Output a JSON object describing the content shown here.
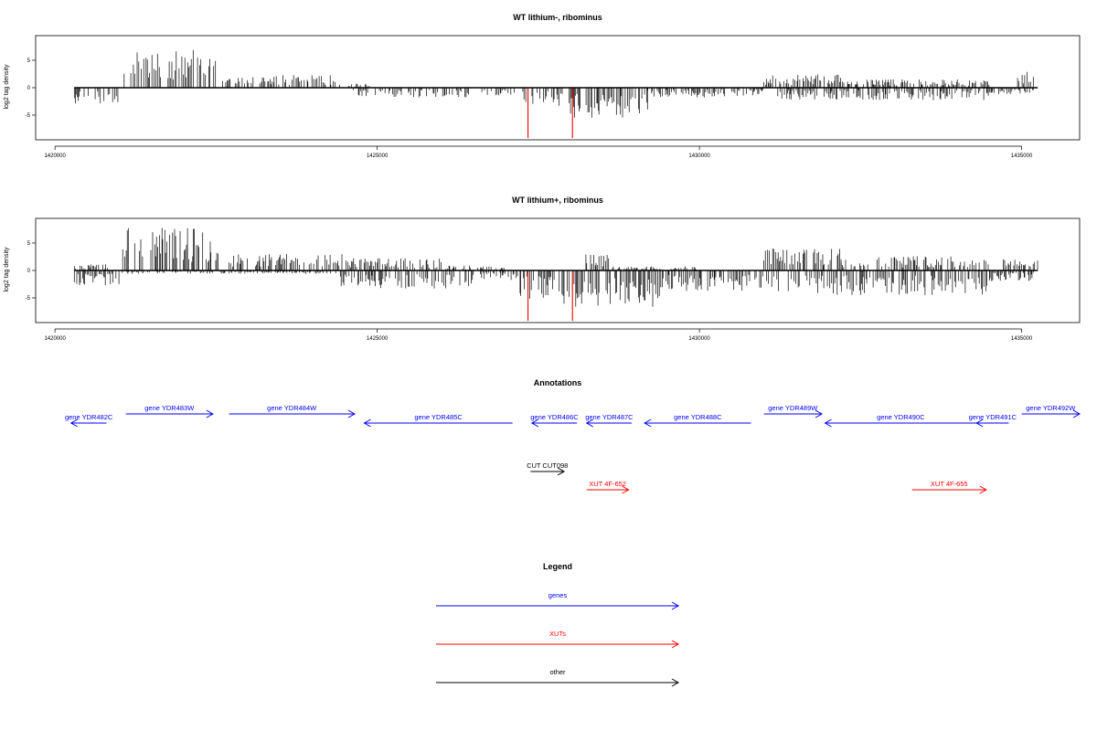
{
  "chart_data": [
    {
      "type": "bar",
      "title": "WT lithium-, ribominus",
      "ylabel": "log2 tag density",
      "xlim": [
        1419700,
        1435900
      ],
      "ylim": [
        -9.5,
        9.5
      ],
      "x_ticks": [
        1420000,
        1425000,
        1430000,
        1435000
      ],
      "y_ticks": [
        5,
        0,
        -5
      ],
      "baseline_from": 1420300,
      "baseline_to": 1435250,
      "highlight_color": "#ff0000",
      "highlight_x": [
        1427340,
        1428030
      ],
      "highlight_values": [
        -9.2,
        -9.2
      ],
      "positive_segments": [
        [
          1421050,
          1422500,
          4.6
        ],
        [
          1422600,
          1423400,
          1.3
        ],
        [
          1423400,
          1424400,
          1.6
        ],
        [
          1424400,
          1424900,
          0.5
        ],
        [
          1431000,
          1432200,
          1.6
        ],
        [
          1432200,
          1434500,
          1.0
        ],
        [
          1434900,
          1435200,
          2.2
        ]
      ],
      "negative_segments": [
        [
          1420300,
          1421000,
          -2.0
        ],
        [
          1424600,
          1426500,
          -1.2
        ],
        [
          1426600,
          1427200,
          -1.0
        ],
        [
          1427200,
          1428000,
          -2.2
        ],
        [
          1428000,
          1429200,
          -3.8
        ],
        [
          1429200,
          1430400,
          -1.2
        ],
        [
          1430500,
          1431000,
          -1.0
        ],
        [
          1431200,
          1434500,
          -1.5
        ],
        [
          1434500,
          1435200,
          -0.8
        ]
      ]
    },
    {
      "type": "bar",
      "title": "WT lithium+, ribominus",
      "ylabel": "log2 tag density",
      "xlim": [
        1419700,
        1435900
      ],
      "ylim": [
        -9.5,
        9.5
      ],
      "x_ticks": [
        1420000,
        1425000,
        1430000,
        1435000
      ],
      "y_ticks": [
        5,
        0,
        -5
      ],
      "baseline_from": 1420300,
      "baseline_to": 1435250,
      "highlight_color": "#ff0000",
      "highlight_x": [
        1427340,
        1428030
      ],
      "highlight_values": [
        -9.2,
        -9.2
      ],
      "positive_segments": [
        [
          1420300,
          1420900,
          0.8
        ],
        [
          1421050,
          1422550,
          5.2
        ],
        [
          1422700,
          1424500,
          2.0
        ],
        [
          1424500,
          1426000,
          1.5
        ],
        [
          1426000,
          1427000,
          0.6
        ],
        [
          1428200,
          1428600,
          2.0
        ],
        [
          1428600,
          1430000,
          0.5
        ],
        [
          1431000,
          1432200,
          2.8
        ],
        [
          1432200,
          1434500,
          1.8
        ],
        [
          1434700,
          1435250,
          1.5
        ]
      ],
      "negative_segments": [
        [
          1420300,
          1421000,
          -1.8
        ],
        [
          1421000,
          1424400,
          -0.4
        ],
        [
          1424400,
          1426500,
          -2.2
        ],
        [
          1426600,
          1427200,
          -1.2
        ],
        [
          1427200,
          1427900,
          -3.5
        ],
        [
          1427900,
          1429400,
          -4.5
        ],
        [
          1429400,
          1431000,
          -2.5
        ],
        [
          1431000,
          1434500,
          -3.0
        ],
        [
          1434500,
          1435200,
          -1.3
        ]
      ]
    }
  ],
  "annotations": {
    "title": "Annotations",
    "genes": [
      {
        "label": "gene YDR482C",
        "from": 1420800,
        "to": 1420250,
        "strand": "-"
      },
      {
        "label": "gene YDR483W",
        "from": 1421100,
        "to": 1422450,
        "strand": "+"
      },
      {
        "label": "gene YDR484W",
        "from": 1422700,
        "to": 1424650,
        "strand": "+"
      },
      {
        "label": "gene YDR485C",
        "from": 1427100,
        "to": 1424800,
        "strand": "-"
      },
      {
        "label": "gene YDR486C",
        "from": 1428100,
        "to": 1427400,
        "strand": "-"
      },
      {
        "label": "gene YDR487C",
        "from": 1428950,
        "to": 1428250,
        "strand": "-"
      },
      {
        "label": "gene YDR488C",
        "from": 1430800,
        "to": 1429150,
        "strand": "-"
      },
      {
        "label": "gene YDR489W",
        "from": 1431000,
        "to": 1431900,
        "strand": "+"
      },
      {
        "label": "gene YDR490C",
        "from": 1434300,
        "to": 1431950,
        "strand": "-"
      },
      {
        "label": "gene YDR491C",
        "from": 1434800,
        "to": 1434300,
        "strand": "-"
      },
      {
        "label": "gene YDR492W",
        "from": 1435000,
        "to": 1435900,
        "strand": "+"
      }
    ],
    "other": [
      {
        "label": "CUT CUT098",
        "from": 1427380,
        "to": 1427900,
        "strand": "+"
      }
    ],
    "xuts": [
      {
        "label": "XUT 4F-652",
        "from": 1428250,
        "to": 1428900,
        "strand": "+"
      },
      {
        "label": "XUT 4F-655",
        "from": 1433300,
        "to": 1434450,
        "strand": "+"
      }
    ]
  },
  "legend": {
    "title": "Legend",
    "items": [
      {
        "label": "genes",
        "color": "#0000ff"
      },
      {
        "label": "XUTs",
        "color": "#ff0000"
      },
      {
        "label": "other",
        "color": "#000000"
      }
    ]
  },
  "colors": {
    "genes": "#0000ff",
    "xuts": "#ff0000",
    "other": "#000000"
  }
}
